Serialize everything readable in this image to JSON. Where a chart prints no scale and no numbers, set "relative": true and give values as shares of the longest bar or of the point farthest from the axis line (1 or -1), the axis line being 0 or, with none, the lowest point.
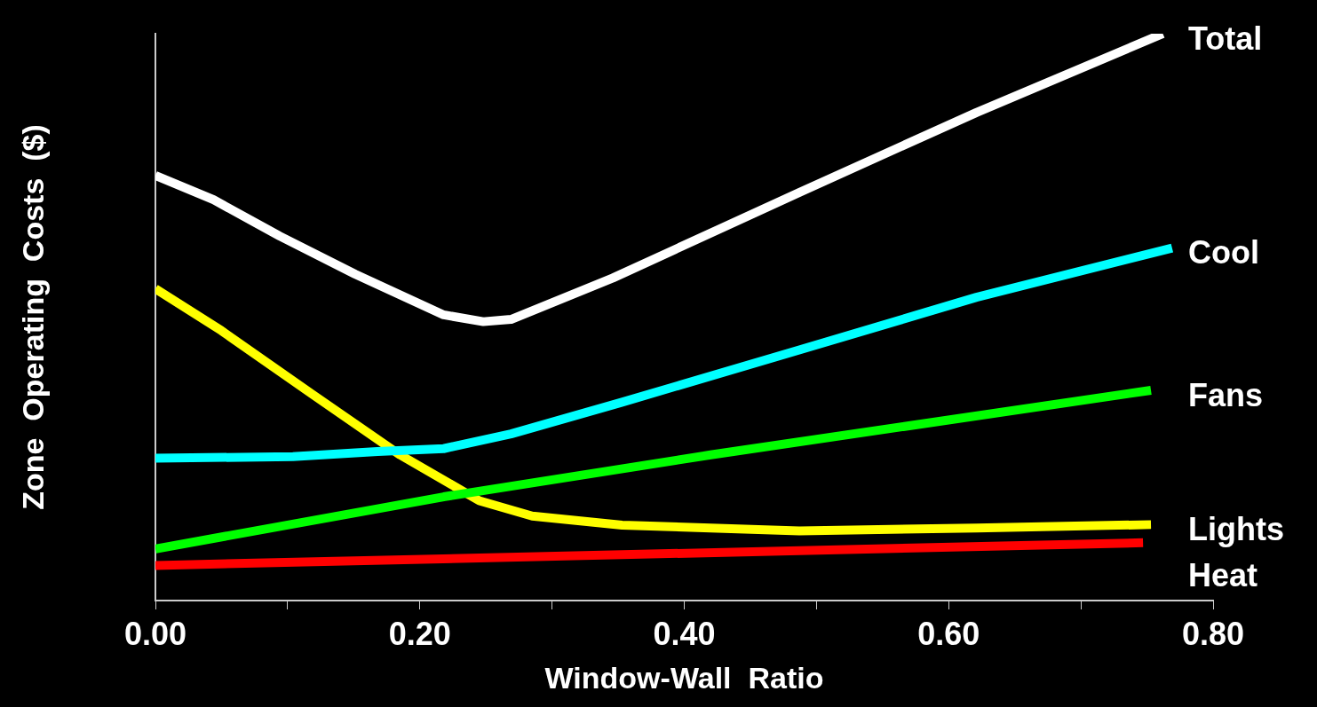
{
  "chart_data": {
    "type": "line",
    "relative": true,
    "xlabel": "Window-Wall  Ratio",
    "ylabel": "Zone  Operating  Costs  ($)",
    "xlim": [
      0,
      0.8
    ],
    "xticks": [
      {
        "value": 0,
        "label": "0.00"
      },
      {
        "value": 0.1,
        "label": null
      },
      {
        "value": 0.2,
        "label": "0.20"
      },
      {
        "value": 0.3,
        "label": null
      },
      {
        "value": 0.4,
        "label": "0.40"
      },
      {
        "value": 0.5,
        "label": null
      },
      {
        "value": 0.6,
        "label": "0.60"
      },
      {
        "value": 0.7,
        "label": null
      },
      {
        "value": 0.8,
        "label": "0.80"
      }
    ],
    "grid": false,
    "legend": false,
    "marker": "none",
    "line_style": "solid",
    "series": [
      {
        "name": "Total",
        "color": "#ffffff",
        "x": [
          0,
          0.044,
          0.094,
          0.151,
          0.218,
          0.248,
          0.269,
          0.346,
          0.487,
          0.621,
          0.762
        ],
        "values": [
          0.75,
          0.707,
          0.643,
          0.576,
          0.504,
          0.492,
          0.496,
          0.569,
          0.72,
          0.861,
          1
        ]
      },
      {
        "name": "Cool",
        "color": "#00ffff",
        "x": [
          0,
          0.104,
          0.168,
          0.218,
          0.269,
          0.353,
          0.487,
          0.621,
          0.769
        ],
        "values": [
          0.251,
          0.254,
          0.263,
          0.268,
          0.294,
          0.35,
          0.442,
          0.535,
          0.622
        ]
      },
      {
        "name": "Fans",
        "color": "#00ff00",
        "x": [
          0,
          0.218,
          0.42,
          0.753
        ],
        "values": [
          0.091,
          0.183,
          0.257,
          0.371
        ]
      },
      {
        "name": "Lights",
        "color": "#ffff00",
        "x": [
          0,
          0.05,
          0.118,
          0.185,
          0.245,
          0.285,
          0.353,
          0.487,
          0.621,
          0.753
        ],
        "values": [
          0.55,
          0.476,
          0.365,
          0.257,
          0.176,
          0.149,
          0.133,
          0.123,
          0.128,
          0.134
        ]
      },
      {
        "name": "Heat",
        "color": "#ff0000",
        "x": [
          0,
          0.747
        ],
        "values": [
          0.062,
          0.102
        ]
      }
    ]
  }
}
